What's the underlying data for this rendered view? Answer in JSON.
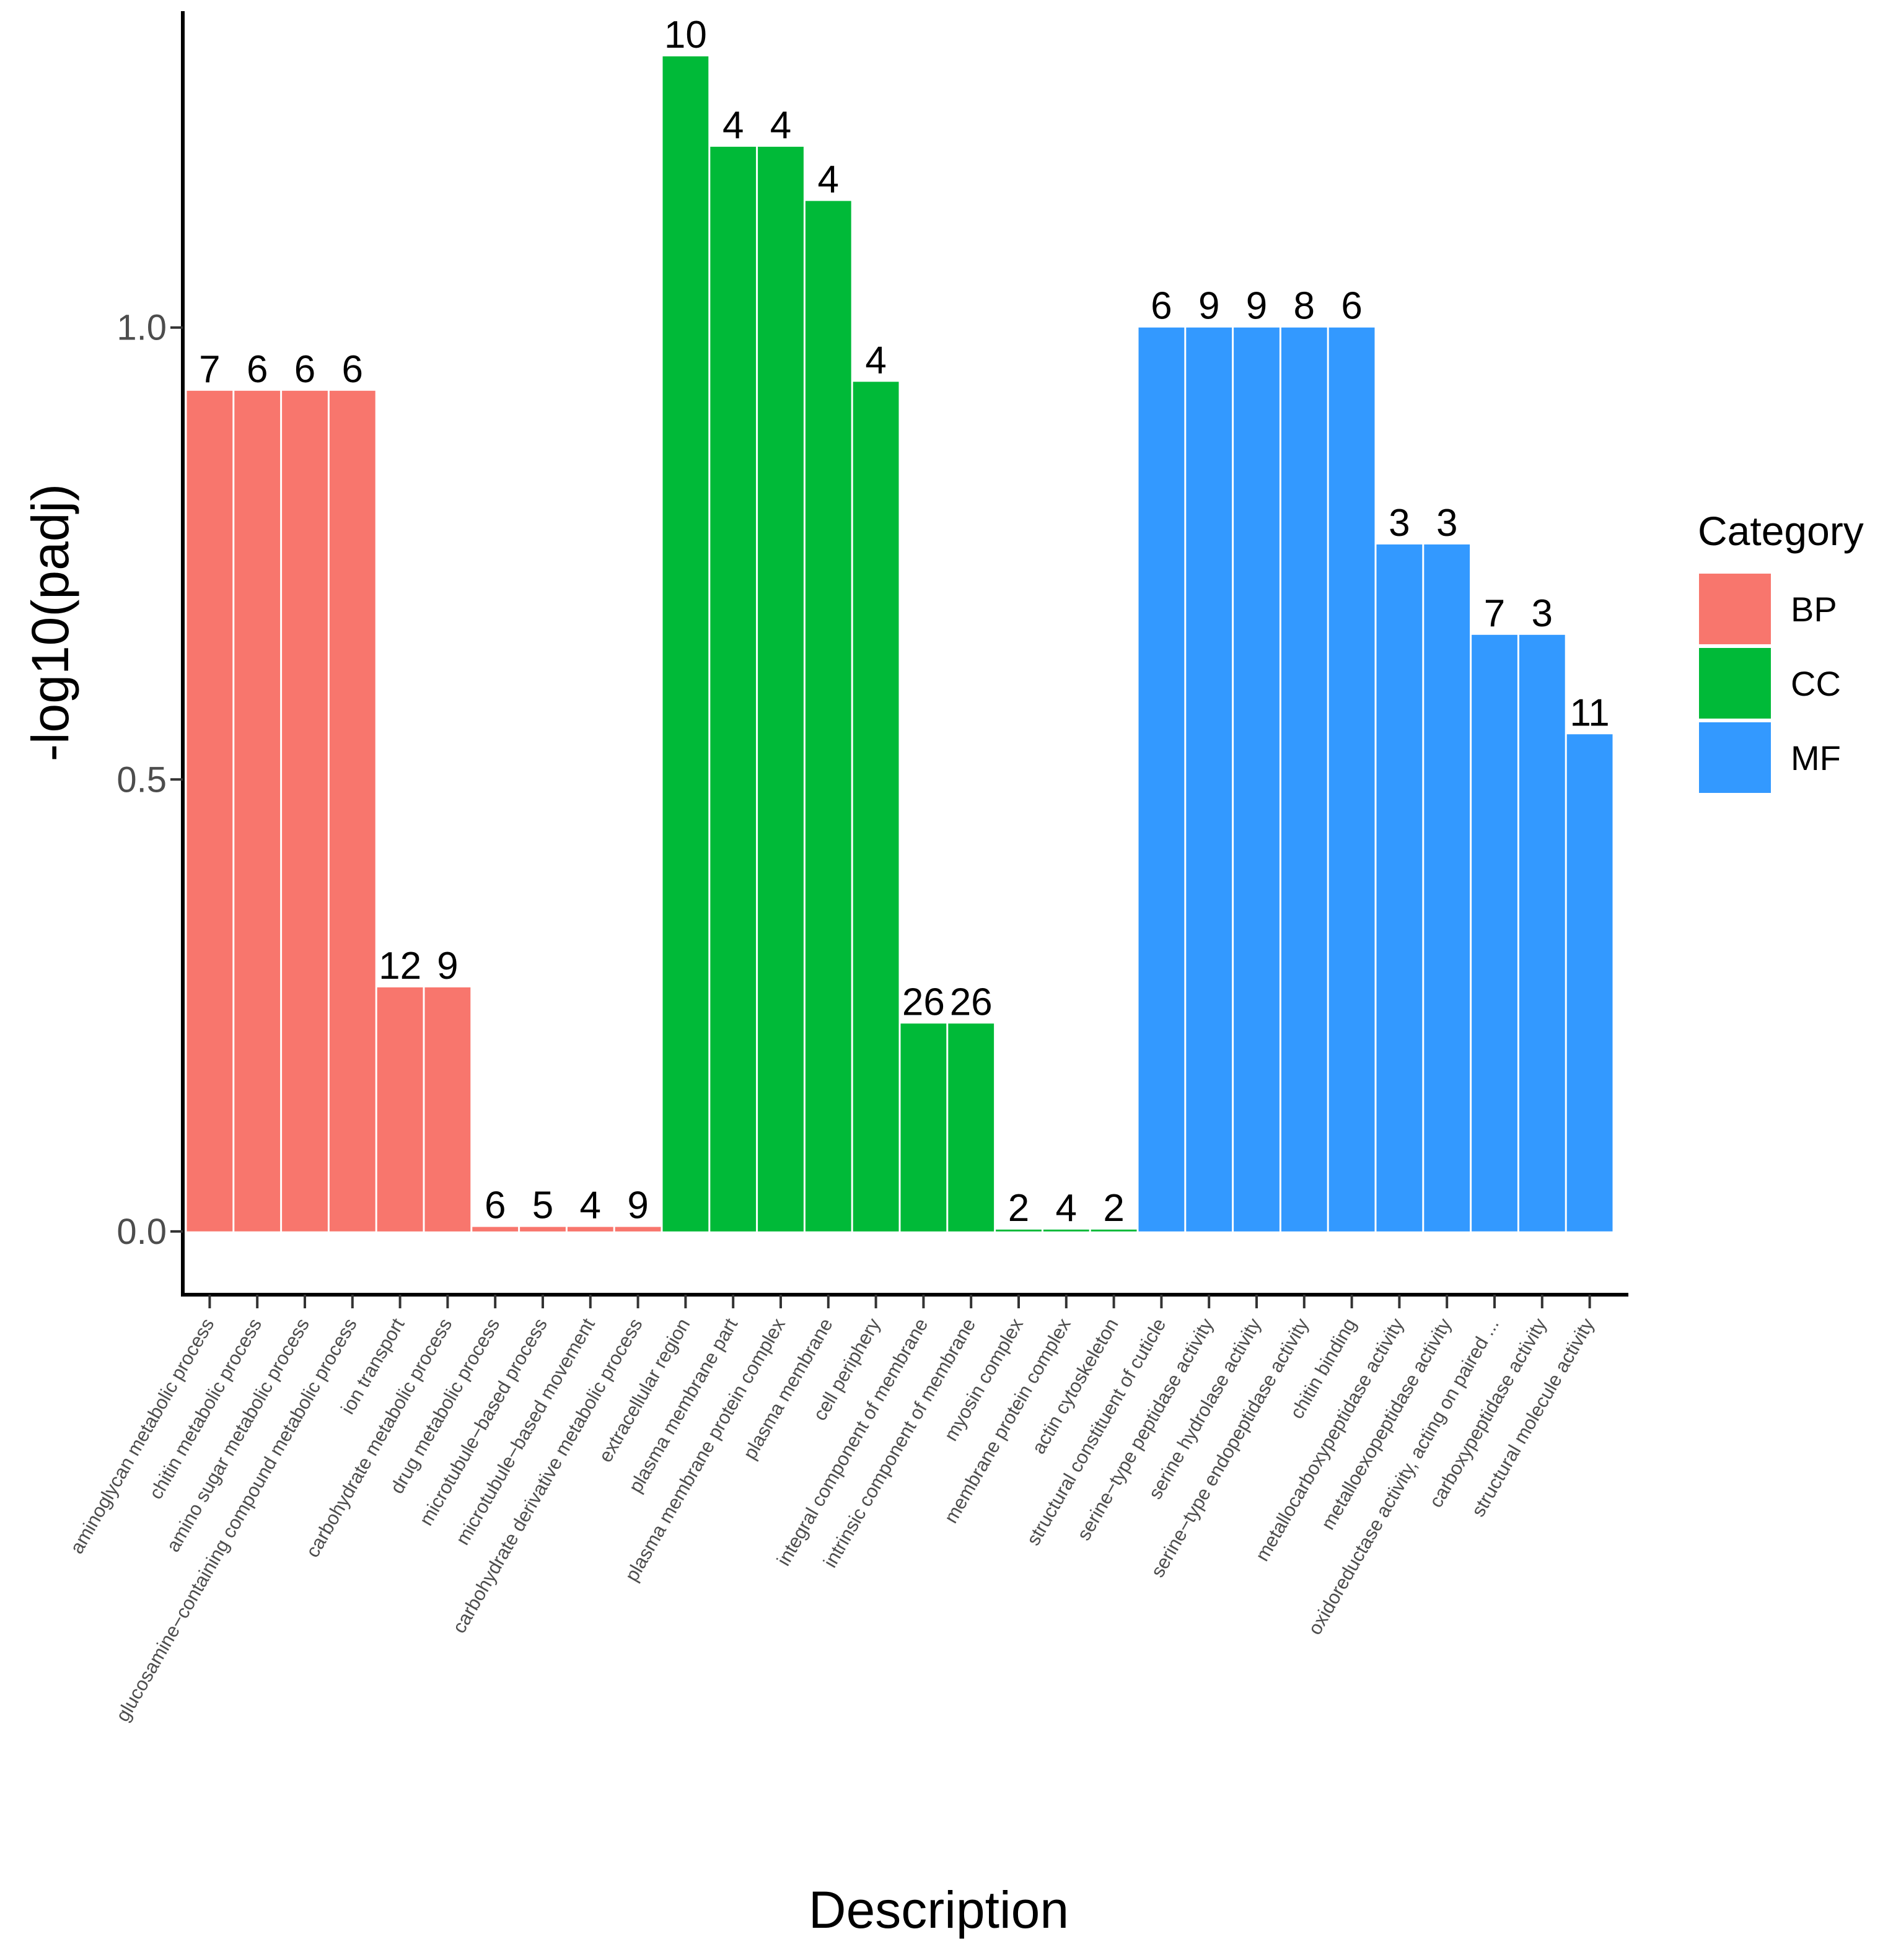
{
  "chart_data": {
    "type": "bar",
    "title": "",
    "xlabel": "Description",
    "ylabel": "-log10(padj)",
    "ylim": [
      -0.07,
      1.35
    ],
    "yticks": [
      "0.0",
      "0.5",
      "1.0"
    ],
    "grid": false,
    "legend": {
      "title": "Category",
      "position": "right",
      "entries": [
        {
          "name": "BP",
          "color": "#F8766D"
        },
        {
          "name": "CC",
          "color": "#00BA38"
        },
        {
          "name": "MF",
          "color": "#3399FF"
        }
      ]
    },
    "categories": [
      "aminoglycan metabolic process",
      "chitin metabolic process",
      "amino sugar metabolic process",
      "glucosamine−containing compound metabolic process",
      "ion transport",
      "carbohydrate metabolic process",
      "drug metabolic process",
      "microtubule−based process",
      "microtubule−based movement",
      "carbohydrate derivative metabolic process",
      "extracellular region",
      "plasma membrane part",
      "plasma membrane protein complex",
      "plasma membrane",
      "cell periphery",
      "integral component of membrane",
      "intrinsic component of membrane",
      "myosin complex",
      "membrane protein complex",
      "actin cytoskeleton",
      "structural constituent of cuticle",
      "serine−type peptidase activity",
      "serine hydrolase activity",
      "serine−type endopeptidase activity",
      "chitin binding",
      "metallocarboxypeptidase activity",
      "metalloexopeptidase activity",
      "oxidoreductase activity, acting on paired ...",
      "carboxypeptidase activity",
      "structural molecule activity"
    ],
    "values": [
      0.93,
      0.93,
      0.93,
      0.93,
      0.27,
      0.27,
      0.005,
      0.005,
      0.005,
      0.005,
      1.3,
      1.2,
      1.2,
      1.14,
      0.94,
      0.23,
      0.23,
      0.002,
      0.002,
      0.002,
      1.0,
      1.0,
      1.0,
      1.0,
      1.0,
      0.76,
      0.76,
      0.66,
      0.66,
      0.55
    ],
    "counts": [
      "7",
      "6",
      "6",
      "6",
      "12",
      "9",
      "6",
      "5",
      "4",
      "9",
      "10",
      "4",
      "4",
      "4",
      "4",
      "26",
      "26",
      "2",
      "4",
      "2",
      "6",
      "9",
      "9",
      "8",
      "6",
      "3",
      "3",
      "7",
      "3",
      "11"
    ],
    "groups": [
      "BP",
      "BP",
      "BP",
      "BP",
      "BP",
      "BP",
      "BP",
      "BP",
      "BP",
      "BP",
      "CC",
      "CC",
      "CC",
      "CC",
      "CC",
      "CC",
      "CC",
      "CC",
      "CC",
      "CC",
      "MF",
      "MF",
      "MF",
      "MF",
      "MF",
      "MF",
      "MF",
      "MF",
      "MF",
      "MF"
    ]
  }
}
